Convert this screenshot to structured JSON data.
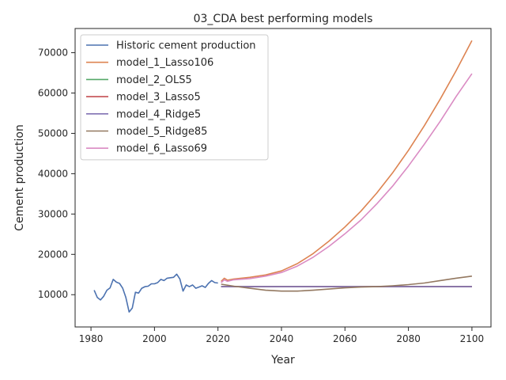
{
  "chart_data": {
    "type": "line",
    "title": "03_CDA best performing models",
    "xlabel": "Year",
    "ylabel": "Cement production",
    "xlim": [
      1975,
      2106
    ],
    "ylim": [
      2000,
      76000
    ],
    "xticks": [
      1980,
      2000,
      2020,
      2040,
      2060,
      2080,
      2100
    ],
    "yticks": [
      10000,
      20000,
      30000,
      40000,
      50000,
      60000,
      70000
    ],
    "grid": false,
    "legend_position": "top-left",
    "series": [
      {
        "name": "Historic cement production",
        "color": "#4c72b0",
        "x": [
          1981,
          1982,
          1983,
          1984,
          1985,
          1986,
          1987,
          1988,
          1989,
          1990,
          1991,
          1992,
          1993,
          1994,
          1995,
          1996,
          1997,
          1998,
          1999,
          2000,
          2001,
          2002,
          2003,
          2004,
          2005,
          2006,
          2007,
          2008,
          2009,
          2010,
          2011,
          2012,
          2013,
          2014,
          2015,
          2016,
          2017,
          2018,
          2019,
          2020
        ],
        "y": [
          11100,
          9300,
          8700,
          9600,
          11100,
          11700,
          13800,
          13100,
          12800,
          11600,
          9300,
          5700,
          6700,
          10600,
          10400,
          11600,
          12000,
          12100,
          12700,
          12700,
          13000,
          13800,
          13500,
          14100,
          14200,
          14300,
          15100,
          13900,
          10900,
          12400,
          12000,
          12400,
          11600,
          11900,
          12200,
          11800,
          12800,
          13500,
          13000,
          12900
        ]
      },
      {
        "name": "model_1_Lasso106",
        "color": "#dd8452",
        "x": [
          2021,
          2022,
          2023,
          2025,
          2030,
          2035,
          2040,
          2045,
          2050,
          2055,
          2060,
          2065,
          2070,
          2075,
          2080,
          2085,
          2090,
          2095,
          2100
        ],
        "y": [
          13300,
          14100,
          13600,
          13900,
          14300,
          14900,
          15900,
          17700,
          20200,
          23300,
          26800,
          30700,
          35200,
          40200,
          45800,
          51900,
          58500,
          65500,
          73000
        ]
      },
      {
        "name": "model_2_OLS5",
        "color": "#55a868",
        "x": [
          2021,
          2030,
          2040,
          2050,
          2060,
          2070,
          2080,
          2090,
          2100
        ],
        "y": [
          12000,
          12000,
          12000,
          12000,
          12000,
          12000,
          12000,
          12000,
          12000
        ]
      },
      {
        "name": "model_3_Lasso5",
        "color": "#c44e52",
        "x": [
          2021,
          2030,
          2040,
          2050,
          2060,
          2070,
          2080,
          2090,
          2100
        ],
        "y": [
          12000,
          12000,
          12000,
          12000,
          12000,
          12000,
          12000,
          12000,
          12000
        ]
      },
      {
        "name": "model_4_Ridge5",
        "color": "#8172b3",
        "x": [
          2021,
          2030,
          2040,
          2050,
          2060,
          2070,
          2080,
          2090,
          2100
        ],
        "y": [
          12000,
          12000,
          12000,
          12000,
          12000,
          12000,
          12000,
          12000,
          12000
        ]
      },
      {
        "name": "model_5_Ridge85",
        "color": "#937860",
        "x": [
          2021,
          2025,
          2030,
          2035,
          2040,
          2045,
          2050,
          2055,
          2060,
          2065,
          2070,
          2075,
          2080,
          2085,
          2090,
          2095,
          2100
        ],
        "y": [
          12600,
          12100,
          11600,
          11100,
          10900,
          10900,
          11100,
          11400,
          11700,
          11900,
          12000,
          12200,
          12500,
          12900,
          13500,
          14100,
          14600
        ]
      },
      {
        "name": "model_6_Lasso69",
        "color": "#da8bc3",
        "x": [
          2021,
          2022,
          2023,
          2025,
          2030,
          2035,
          2040,
          2045,
          2050,
          2055,
          2060,
          2065,
          2070,
          2075,
          2080,
          2085,
          2090,
          2095,
          2100
        ],
        "y": [
          13000,
          13700,
          13300,
          13700,
          14000,
          14600,
          15500,
          17100,
          19300,
          22000,
          25100,
          28500,
          32500,
          36900,
          41900,
          47300,
          53000,
          59100,
          64800
        ]
      }
    ]
  }
}
